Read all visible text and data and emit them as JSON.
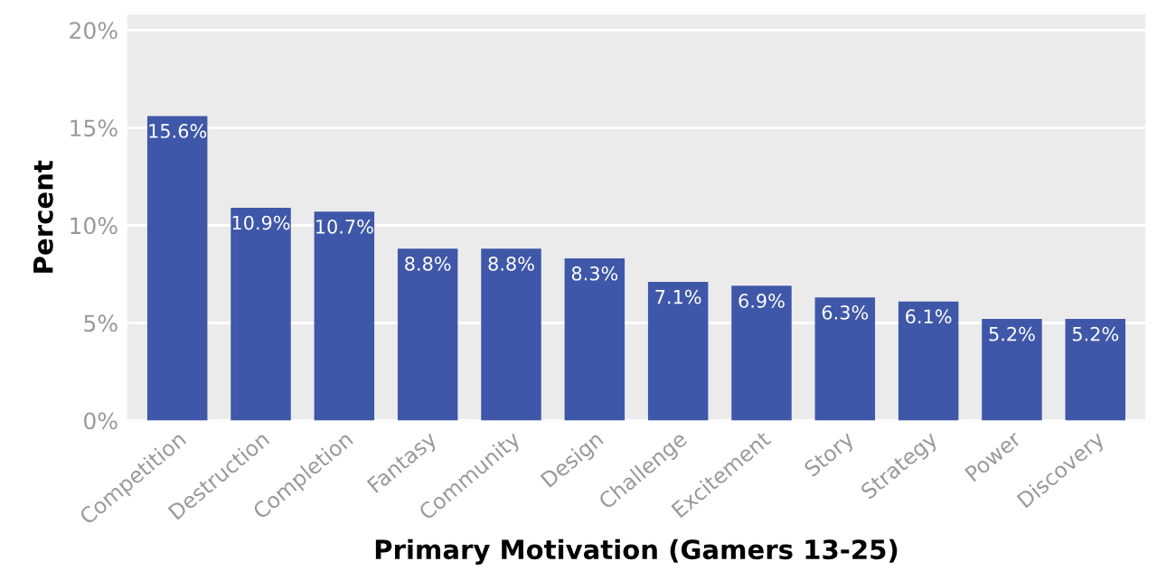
{
  "chart_data": {
    "type": "bar",
    "xlabel": "Primary Motivation (Gamers 13-25)",
    "ylabel": "Percent",
    "categories": [
      "Competition",
      "Destruction",
      "Completion",
      "Fantasy",
      "Community",
      "Design",
      "Challenge",
      "Excitement",
      "Story",
      "Strategy",
      "Power",
      "Discovery"
    ],
    "values": [
      15.6,
      10.9,
      10.7,
      8.8,
      8.8,
      8.3,
      7.1,
      6.9,
      6.3,
      6.1,
      5.2,
      5.2
    ],
    "value_labels": [
      "15.6%",
      "10.9%",
      "10.7%",
      "8.8%",
      "8.8%",
      "8.3%",
      "7.1%",
      "6.9%",
      "6.3%",
      "6.1%",
      "5.2%",
      "5.2%"
    ],
    "color": "#3f57a8",
    "ylim": [
      0,
      20.8
    ],
    "yticks": [
      {
        "value": 0,
        "label": "0%"
      },
      {
        "value": 5,
        "label": "5%"
      },
      {
        "value": 10,
        "label": "10%"
      },
      {
        "value": 15,
        "label": "15%"
      },
      {
        "value": 20,
        "label": "20%"
      }
    ],
    "grid": "y"
  }
}
